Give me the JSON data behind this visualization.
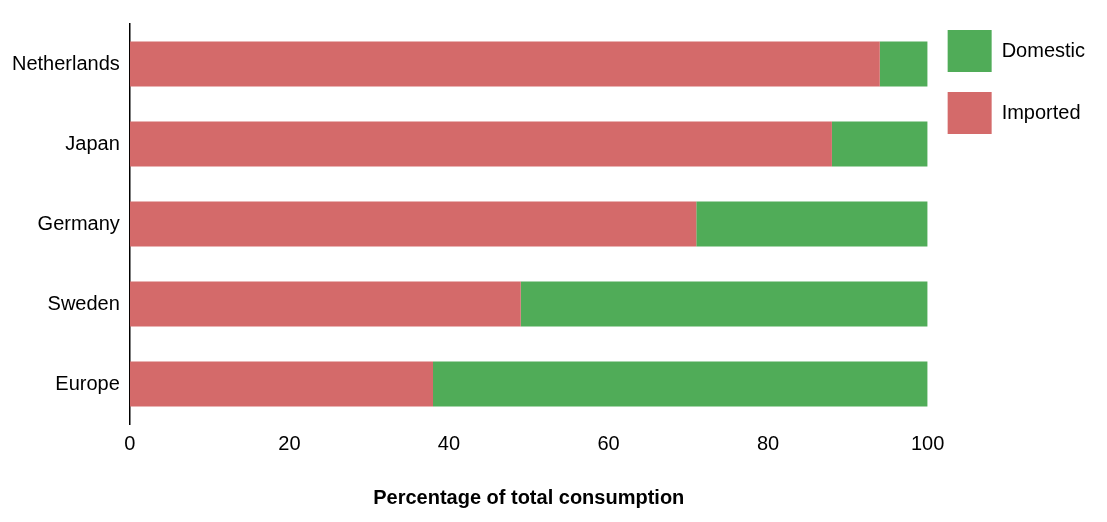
{
  "chart_data": {
    "type": "bar",
    "orientation": "horizontal",
    "stacked": true,
    "xlabel": "Percentage of total consumption",
    "categories": [
      "Netherlands",
      "Japan",
      "Germany",
      "Sweden",
      "Europe"
    ],
    "series": [
      {
        "name": "Imported",
        "color": "#d46a6a",
        "values": [
          94,
          88,
          71,
          49,
          38
        ]
      },
      {
        "name": "Domestic",
        "color": "#50ac58",
        "values": [
          6,
          12,
          29,
          51,
          62
        ]
      }
    ],
    "xlim": [
      0,
      100
    ],
    "xticks": [
      0,
      20,
      40,
      60,
      80,
      100
    ],
    "grid": false,
    "legend": "top right"
  }
}
